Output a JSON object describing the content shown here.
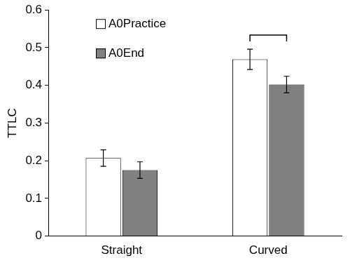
{
  "chart_data": {
    "type": "bar",
    "y_label": "TTLC",
    "categories": [
      "Straight",
      "Curved"
    ],
    "series": [
      {
        "name": "A0Practice",
        "color": "#ffffff",
        "values": [
          0.207,
          0.469
        ],
        "errors": [
          0.022,
          0.027
        ]
      },
      {
        "name": "A0End",
        "color": "#808080",
        "values": [
          0.175,
          0.402
        ],
        "errors": [
          0.022,
          0.022
        ]
      }
    ],
    "significant": [
      false,
      true
    ],
    "ylim": [
      0,
      0.6
    ],
    "yticks": [
      0,
      0.1,
      0.2,
      0.3,
      0.4,
      0.5,
      0.6
    ],
    "grid": false,
    "legend": "upper left"
  }
}
